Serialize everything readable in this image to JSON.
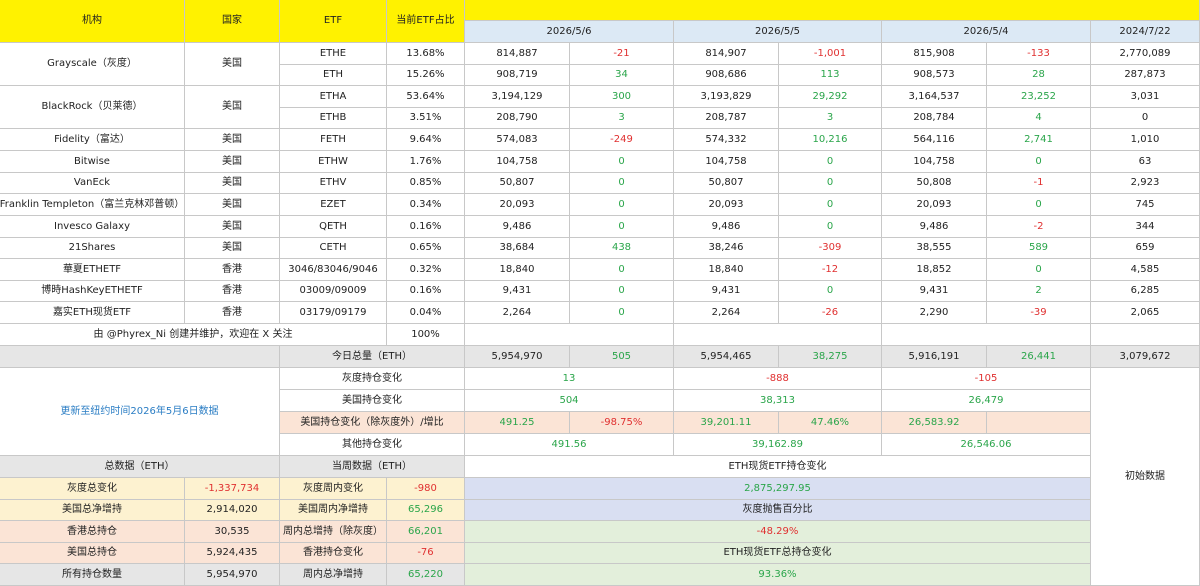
{
  "header": {
    "institution": "机构",
    "country": "国家",
    "etf": "ETF",
    "share": "当前ETF占比",
    "dates": [
      "2026/5/6",
      "2026/5/5",
      "2026/5/4",
      "2024/7/22"
    ]
  },
  "rows": [
    {
      "inst": "Grayscale（灰度）",
      "country": "美国",
      "etf": "ETHE",
      "pct": "13.68%",
      "v1": "814,887",
      "c1": "-21",
      "v2": "814,907",
      "c2": "-1,001",
      "v3": "815,908",
      "c3": "-133",
      "v4": "2,770,089"
    },
    {
      "etf": "ETH",
      "pct": "15.26%",
      "v1": "908,719",
      "c1": "34",
      "v2": "908,686",
      "c2": "113",
      "v3": "908,573",
      "c3": "28",
      "v4": "287,873"
    },
    {
      "inst": "BlackRock（贝莱德）",
      "country": "美国",
      "etf": "ETHA",
      "pct": "53.64%",
      "v1": "3,194,129",
      "c1": "300",
      "v2": "3,193,829",
      "c2": "29,292",
      "v3": "3,164,537",
      "c3": "23,252",
      "v4": "3,031"
    },
    {
      "etf": "ETHB",
      "pct": "3.51%",
      "v1": "208,790",
      "c1": "3",
      "v2": "208,787",
      "c2": "3",
      "v3": "208,784",
      "c3": "4",
      "v4": "0"
    },
    {
      "inst": "Fidelity（富达）",
      "country": "美国",
      "etf": "FETH",
      "pct": "9.64%",
      "v1": "574,083",
      "c1": "-249",
      "v2": "574,332",
      "c2": "10,216",
      "v3": "564,116",
      "c3": "2,741",
      "v4": "1,010"
    },
    {
      "inst": "Bitwise",
      "country": "美国",
      "etf": "ETHW",
      "pct": "1.76%",
      "v1": "104,758",
      "c1": "0",
      "v2": "104,758",
      "c2": "0",
      "v3": "104,758",
      "c3": "0",
      "v4": "63"
    },
    {
      "inst": "VanEck",
      "country": "美国",
      "etf": "ETHV",
      "pct": "0.85%",
      "v1": "50,807",
      "c1": "0",
      "v2": "50,807",
      "c2": "0",
      "v3": "50,808",
      "c3": "-1",
      "v4": "2,923"
    },
    {
      "inst": "Franklin Templeton（富兰克林邓普顿）",
      "country": "美国",
      "etf": "EZET",
      "pct": "0.34%",
      "v1": "20,093",
      "c1": "0",
      "v2": "20,093",
      "c2": "0",
      "v3": "20,093",
      "c3": "0",
      "v4": "745"
    },
    {
      "inst": "Invesco Galaxy",
      "country": "美国",
      "etf": "QETH",
      "pct": "0.16%",
      "v1": "9,486",
      "c1": "0",
      "v2": "9,486",
      "c2": "0",
      "v3": "9,486",
      "c3": "-2",
      "v4": "344"
    },
    {
      "inst": "21Shares",
      "country": "美国",
      "etf": "CETH",
      "pct": "0.65%",
      "v1": "38,684",
      "c1": "438",
      "v2": "38,246",
      "c2": "-309",
      "v3": "38,555",
      "c3": "589",
      "v4": "659"
    },
    {
      "inst": "華夏ETHETF",
      "country": "香港",
      "etf": "3046/83046/9046",
      "pct": "0.32%",
      "v1": "18,840",
      "c1": "0",
      "v2": "18,840",
      "c2": "-12",
      "v3": "18,852",
      "c3": "0",
      "v4": "4,585"
    },
    {
      "inst": "博時HashKeyETHETF",
      "country": "香港",
      "etf": "03009/09009",
      "pct": "0.16%",
      "v1": "9,431",
      "c1": "0",
      "v2": "9,431",
      "c2": "0",
      "v3": "9,431",
      "c3": "2",
      "v4": "6,285"
    },
    {
      "inst": "嘉实ETH现货ETF",
      "country": "香港",
      "etf": "03179/09179",
      "pct": "0.04%",
      "v1": "2,264",
      "c1": "0",
      "v2": "2,264",
      "c2": "-26",
      "v3": "2,290",
      "c3": "-39",
      "v4": "2,065"
    }
  ],
  "credit": {
    "text": "由 @Phyrex_Ni 创建并维护，欢迎在 X 关注",
    "pct": "100%"
  },
  "total": {
    "label": "今日总量（ETH）",
    "v1": "5,954,970",
    "c1": "505",
    "v2": "5,954,465",
    "c2": "38,275",
    "v3": "5,916,191",
    "c3": "26,441",
    "v4": "3,079,672"
  },
  "update_note": "更新至纽约时间2026年5月6日数据",
  "changes": {
    "grayscale": {
      "label": "灰度持仓变化",
      "d1": "13",
      "d2": "-888",
      "d3": "-105"
    },
    "us": {
      "label": "美国持仓变化",
      "d1": "504",
      "d2": "38,313",
      "d3": "26,479"
    },
    "us_ex": {
      "label": "美国持仓变化（除灰度外）/增比",
      "a1": "491.25",
      "b1": "-98.75%",
      "a2": "39,201.11",
      "b2": "47.46%",
      "a3": "26,583.92"
    },
    "other": {
      "label": "其他持仓变化",
      "d1": "491.56",
      "d2": "39,162.89",
      "d3": "26,546.06"
    }
  },
  "initial_data": "初始数据",
  "summary": {
    "total_header": "总数据（ETH）",
    "week_header": "当周数据（ETH）",
    "etf_change_title": "ETH现货ETF持仓变化",
    "rows": [
      {
        "l": "灰度总变化",
        "v": "-1,337,734",
        "wl": "灰度周内变化",
        "wv": "-980",
        "r": "2,875,297.95"
      },
      {
        "l": "美国总净增持",
        "v": "2,914,020",
        "wl": "美国周内净增持",
        "wv": "65,296",
        "r": "灰度抛售百分比"
      },
      {
        "l": "香港总持仓",
        "v": "30,535",
        "wl": "周内总增持（除灰度）",
        "wv": "66,201",
        "r": "-48.29%"
      },
      {
        "l": "美国总持仓",
        "v": "5,924,435",
        "wl": "香港持仓变化",
        "wv": "-76",
        "r": "ETH现货ETF总持仓变化"
      },
      {
        "l": "所有持仓数量",
        "v": "5,954,970",
        "wl": "周内总净增持",
        "wv": "65,220",
        "r": "93.36%"
      }
    ]
  },
  "colors": {
    "header_yellow": "#fff200",
    "date_blue": "#dce9f5",
    "total_grey": "#e6e6e6",
    "negative": "#e03030",
    "positive": "#2aa54a",
    "note_blue": "#2a7dc4"
  }
}
